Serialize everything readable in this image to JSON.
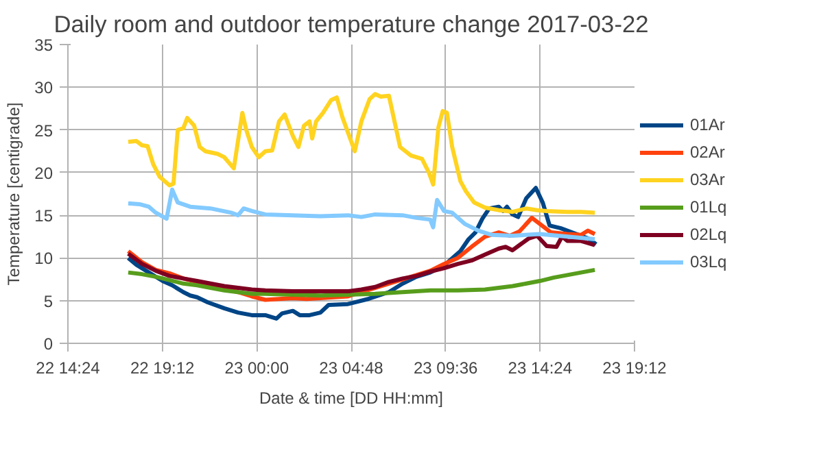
{
  "chart_data": {
    "type": "line",
    "title": "Daily room and outdoor temperature change 2017-03-22",
    "xlabel": "Date & time [DD HH:mm]",
    "ylabel": "Temperature [centigrade]",
    "xlim": [
      "2017-03-22T14:24",
      "2017-03-23T19:12"
    ],
    "xticks": [
      {
        "value": "2017-03-22T14:24",
        "label": "22 14:24"
      },
      {
        "value": "2017-03-22T19:12",
        "label": "22 19:12"
      },
      {
        "value": "2017-03-23T00:00",
        "label": "23 00:00"
      },
      {
        "value": "2017-03-23T04:48",
        "label": "23 04:48"
      },
      {
        "value": "2017-03-23T09:36",
        "label": "23 09:36"
      },
      {
        "value": "2017-03-23T14:24",
        "label": "23 14:24"
      },
      {
        "value": "2017-03-23T19:12",
        "label": "23 19:12"
      }
    ],
    "ylim": [
      0,
      35
    ],
    "yticks": [
      0,
      5,
      10,
      15,
      20,
      25,
      30,
      35
    ],
    "grid": true,
    "legend": "right",
    "line_style": "solid",
    "series": [
      {
        "name": "01Ar",
        "color": "#004586",
        "x": [
          "2017-03-22T17:28",
          "2017-03-22T17:53",
          "2017-03-22T18:31",
          "2017-03-22T19:13",
          "2017-03-22T19:42",
          "2017-03-22T20:16",
          "2017-03-22T20:37",
          "2017-03-22T20:58",
          "2017-03-22T21:31",
          "2017-03-22T22:21",
          "2017-03-22T23:03",
          "2017-03-22T23:45",
          "2017-03-23T00:26",
          "2017-03-23T01:00",
          "2017-03-23T01:17",
          "2017-03-23T01:50",
          "2017-03-23T02:11",
          "2017-03-23T02:41",
          "2017-03-23T03:14",
          "2017-03-23T03:39",
          "2017-03-23T04:38",
          "2017-03-23T05:40",
          "2017-03-23T06:43",
          "2017-03-23T07:25",
          "2017-03-23T08:07",
          "2017-03-23T08:49",
          "2017-03-23T09:31",
          "2017-03-23T10:00",
          "2017-03-23T10:21",
          "2017-03-23T10:46",
          "2017-03-23T11:07",
          "2017-03-23T11:28",
          "2017-03-23T11:49",
          "2017-03-23T12:18",
          "2017-03-23T12:31",
          "2017-03-23T12:43",
          "2017-03-23T13:00",
          "2017-03-23T13:17",
          "2017-03-23T13:42",
          "2017-03-23T14:11",
          "2017-03-23T14:32",
          "2017-03-23T14:53",
          "2017-03-23T15:26",
          "2017-03-23T16:08",
          "2017-03-23T16:50",
          "2017-03-23T17:15"
        ],
        "values": [
          10,
          9.2,
          8.3,
          7.3,
          6.8,
          6,
          5.6,
          5.4,
          4.8,
          4.1,
          3.6,
          3.3,
          3.3,
          2.9,
          3.5,
          3.8,
          3.3,
          3.3,
          3.6,
          4.5,
          4.6,
          5.2,
          6,
          7,
          7.8,
          8.3,
          9.1,
          10.1,
          10.8,
          12.2,
          13,
          14.6,
          15.8,
          16,
          15.5,
          16,
          15.1,
          14.8,
          17,
          18.2,
          16.5,
          13.8,
          13.5,
          12.9,
          12.3,
          11.6
        ]
      },
      {
        "name": "02Ar",
        "color": "#ff420e",
        "x": [
          "2017-03-22T17:28",
          "2017-03-22T18:10",
          "2017-03-22T18:52",
          "2017-03-22T19:34",
          "2017-03-22T20:16",
          "2017-03-22T20:58",
          "2017-03-22T21:39",
          "2017-03-22T22:21",
          "2017-03-22T23:03",
          "2017-03-22T23:45",
          "2017-03-23T00:26",
          "2017-03-23T01:08",
          "2017-03-23T01:50",
          "2017-03-23T02:32",
          "2017-03-23T03:14",
          "2017-03-23T03:56",
          "2017-03-23T04:38",
          "2017-03-23T05:19",
          "2017-03-23T06:01",
          "2017-03-23T06:43",
          "2017-03-23T07:25",
          "2017-03-23T08:07",
          "2017-03-23T08:49",
          "2017-03-23T09:31",
          "2017-03-23T10:13",
          "2017-03-23T10:55",
          "2017-03-23T11:36",
          "2017-03-23T12:18",
          "2017-03-23T12:52",
          "2017-03-23T13:21",
          "2017-03-23T13:59",
          "2017-03-23T14:23",
          "2017-03-23T14:57",
          "2017-03-23T15:47",
          "2017-03-23T16:29",
          "2017-03-23T16:50",
          "2017-03-23T17:11"
        ],
        "values": [
          10.8,
          9.5,
          8.6,
          8.2,
          7.6,
          7.2,
          6.9,
          6.4,
          6,
          5.5,
          5.1,
          5.2,
          5.3,
          5.2,
          5.3,
          5.4,
          5.5,
          6,
          6.5,
          7,
          7.5,
          8,
          8.5,
          9.3,
          10,
          11.3,
          12.5,
          13,
          12.6,
          13.1,
          14.7,
          14,
          13,
          12.8,
          12.7,
          13.2,
          12.8
        ]
      },
      {
        "name": "03Ar",
        "color": "#ffd320",
        "x": [
          "2017-03-22T17:28",
          "2017-03-22T17:53",
          "2017-03-22T18:10",
          "2017-03-22T18:27",
          "2017-03-22T18:44",
          "2017-03-22T19:04",
          "2017-03-22T19:34",
          "2017-03-22T19:46",
          "2017-03-22T19:59",
          "2017-03-22T20:16",
          "2017-03-22T20:28",
          "2017-03-22T20:49",
          "2017-03-22T21:06",
          "2017-03-22T21:23",
          "2017-03-22T22:00",
          "2017-03-22T22:21",
          "2017-03-22T22:50",
          "2017-03-22T23:16",
          "2017-03-22T23:28",
          "2017-03-22T23:45",
          "2017-03-23T00:06",
          "2017-03-23T00:26",
          "2017-03-23T00:47",
          "2017-03-23T01:08",
          "2017-03-23T01:25",
          "2017-03-23T01:50",
          "2017-03-23T02:07",
          "2017-03-23T02:24",
          "2017-03-23T02:41",
          "2017-03-23T02:49",
          "2017-03-23T03:01",
          "2017-03-23T03:22",
          "2017-03-23T03:47",
          "2017-03-23T04:04",
          "2017-03-23T04:21",
          "2017-03-23T04:59",
          "2017-03-23T05:19",
          "2017-03-23T05:44",
          "2017-03-23T06:01",
          "2017-03-23T06:18",
          "2017-03-23T06:43",
          "2017-03-23T07:00",
          "2017-03-23T07:17",
          "2017-03-23T07:50",
          "2017-03-23T08:24",
          "2017-03-23T08:45",
          "2017-03-23T08:58",
          "2017-03-23T09:14",
          "2017-03-23T09:27",
          "2017-03-23T09:40",
          "2017-03-23T09:56",
          "2017-03-23T10:21",
          "2017-03-23T10:38",
          "2017-03-23T11:03",
          "2017-03-23T11:36",
          "2017-03-23T12:18",
          "2017-03-23T12:43",
          "2017-03-23T13:00",
          "2017-03-23T13:21",
          "2017-03-23T13:42",
          "2017-03-23T14:15",
          "2017-03-23T14:44",
          "2017-03-23T15:47",
          "2017-03-23T16:29",
          "2017-03-23T17:11"
        ],
        "values": [
          23.6,
          23.7,
          23.2,
          23.1,
          21,
          19.5,
          18.5,
          18.7,
          25,
          25.2,
          26.4,
          25.5,
          23,
          22.5,
          22.2,
          21.8,
          20.5,
          27,
          25,
          23,
          21.8,
          22.5,
          22.6,
          26,
          26.8,
          24.3,
          23,
          25.5,
          26,
          24,
          26,
          27,
          28.5,
          28.8,
          26.5,
          22.5,
          26,
          28.6,
          29.2,
          28.9,
          29,
          26,
          23,
          22,
          21.6,
          20,
          18.6,
          25.3,
          27.2,
          27,
          23,
          19,
          17.8,
          16.5,
          15.9,
          15.6,
          15.5,
          15.4,
          15.6,
          15.8,
          15.6,
          15.5,
          15.4,
          15.4,
          15.3
        ]
      },
      {
        "name": "01Lq",
        "color": "#579d1c",
        "x": [
          "2017-03-22T17:28",
          "2017-03-22T18:10",
          "2017-03-22T18:52",
          "2017-03-22T19:34",
          "2017-03-22T20:16",
          "2017-03-22T20:58",
          "2017-03-22T21:39",
          "2017-03-22T22:21",
          "2017-03-22T23:03",
          "2017-03-22T23:45",
          "2017-03-23T00:26",
          "2017-03-23T01:50",
          "2017-03-23T03:14",
          "2017-03-23T04:38",
          "2017-03-23T06:01",
          "2017-03-23T07:25",
          "2017-03-23T08:49",
          "2017-03-23T10:13",
          "2017-03-23T11:36",
          "2017-03-23T12:18",
          "2017-03-23T13:00",
          "2017-03-23T13:42",
          "2017-03-23T14:23",
          "2017-03-23T15:05",
          "2017-03-23T15:47",
          "2017-03-23T16:29",
          "2017-03-23T17:11"
        ],
        "values": [
          8.3,
          8.1,
          7.8,
          7.4,
          7,
          6.8,
          6.5,
          6.2,
          6,
          5.8,
          5.8,
          5.7,
          5.6,
          5.7,
          5.8,
          6,
          6.2,
          6.2,
          6.3,
          6.5,
          6.7,
          7,
          7.3,
          7.7,
          8,
          8.3,
          8.6
        ]
      },
      {
        "name": "02Lq",
        "color": "#7e0021",
        "x": [
          "2017-03-22T17:28",
          "2017-03-22T18:10",
          "2017-03-22T18:52",
          "2017-03-22T19:34",
          "2017-03-22T20:16",
          "2017-03-22T20:58",
          "2017-03-22T21:39",
          "2017-03-22T22:21",
          "2017-03-22T23:03",
          "2017-03-22T23:45",
          "2017-03-23T00:26",
          "2017-03-23T01:50",
          "2017-03-23T03:14",
          "2017-03-23T04:38",
          "2017-03-23T05:19",
          "2017-03-23T06:01",
          "2017-03-23T06:43",
          "2017-03-23T07:25",
          "2017-03-23T08:07",
          "2017-03-23T08:49",
          "2017-03-23T09:31",
          "2017-03-23T10:13",
          "2017-03-23T10:55",
          "2017-03-23T11:36",
          "2017-03-23T12:18",
          "2017-03-23T12:39",
          "2017-03-23T13:00",
          "2017-03-23T13:21",
          "2017-03-23T13:50",
          "2017-03-23T14:15",
          "2017-03-23T14:44",
          "2017-03-23T15:14",
          "2017-03-23T15:31",
          "2017-03-23T15:47",
          "2017-03-23T16:29",
          "2017-03-23T17:11"
        ],
        "values": [
          10.5,
          9.3,
          8.5,
          7.9,
          7.6,
          7.3,
          7,
          6.7,
          6.5,
          6.3,
          6.2,
          6.1,
          6.1,
          6.1,
          6.3,
          6.6,
          7.2,
          7.6,
          7.9,
          8.4,
          8.8,
          9.3,
          9.7,
          10.4,
          11.1,
          11.3,
          10.9,
          11.5,
          12.3,
          12.6,
          11.4,
          11.3,
          12.5,
          12,
          12,
          11.5
        ]
      },
      {
        "name": "03Lq",
        "color": "#83caff",
        "x": [
          "2017-03-22T17:28",
          "2017-03-22T18:02",
          "2017-03-22T18:31",
          "2017-03-22T18:52",
          "2017-03-22T19:25",
          "2017-03-22T19:42",
          "2017-03-22T19:59",
          "2017-03-22T20:37",
          "2017-03-22T21:39",
          "2017-03-22T22:42",
          "2017-03-22T23:03",
          "2017-03-22T23:20",
          "2017-03-22T23:45",
          "2017-03-23T00:26",
          "2017-03-23T01:50",
          "2017-03-23T03:14",
          "2017-03-23T04:38",
          "2017-03-23T05:19",
          "2017-03-23T06:01",
          "2017-03-23T07:25",
          "2017-03-23T08:07",
          "2017-03-23T08:49",
          "2017-03-23T08:58",
          "2017-03-23T09:10",
          "2017-03-23T09:31",
          "2017-03-23T09:56",
          "2017-03-23T10:34",
          "2017-03-23T11:16",
          "2017-03-23T11:57",
          "2017-03-23T13:00",
          "2017-03-23T14:23",
          "2017-03-23T15:47",
          "2017-03-23T17:11"
        ],
        "values": [
          16.4,
          16.3,
          16,
          15.3,
          14.6,
          18,
          16.5,
          16,
          15.8,
          15.3,
          15,
          15.8,
          15.5,
          15.1,
          15,
          14.9,
          15,
          14.8,
          15.1,
          15,
          14.7,
          14.5,
          13.6,
          16.8,
          15.5,
          15.3,
          14,
          13.2,
          12.7,
          12.6,
          12.8,
          12.5,
          12.2
        ]
      }
    ]
  }
}
